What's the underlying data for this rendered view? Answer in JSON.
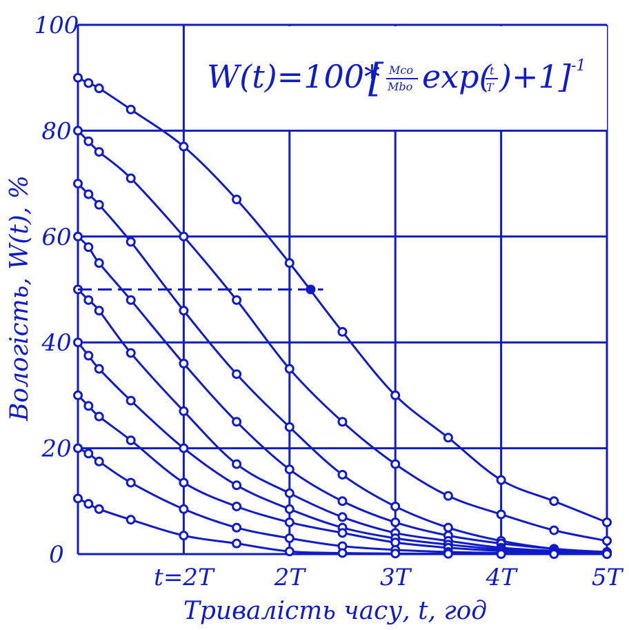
{
  "chart_data": {
    "type": "line",
    "xlabel": "Тривалість часу, t, год",
    "ylabel": "Вологість, W(t), %",
    "formula": {
      "lhs": "W(t)=100*",
      "open_bracket": "[",
      "ratio_num": "Mco",
      "ratio_den": "Mbo",
      "exp_prefix": "exp(",
      "exp_num": "t",
      "exp_den": "T",
      "exp_suffix": ")+1]",
      "power": "-1"
    },
    "x_tick_labels": [
      "t=2T",
      "2T",
      "3T",
      "4T",
      "5T"
    ],
    "x_tick_values": [
      1,
      2,
      3,
      4,
      5
    ],
    "y_tick_labels": [
      "100",
      "80",
      "60",
      "40",
      "20",
      "0"
    ],
    "y_tick_values": [
      100,
      80,
      60,
      40,
      20,
      0
    ],
    "xlim": [
      0,
      5
    ],
    "ylim": [
      0,
      100
    ],
    "grid": true,
    "x_gridlines": [
      0,
      1,
      2,
      3,
      4,
      5
    ],
    "y_gridlines": [
      0,
      20,
      40,
      60,
      80,
      100
    ],
    "reference_line": {
      "y": 50,
      "x_from": 0,
      "x_to": 2.2,
      "style": "dashed"
    },
    "marked_point": {
      "x": 2.2,
      "y": 50
    },
    "color": "#0f1bc8",
    "series": [
      {
        "x": [
          0,
          0.1,
          0.2,
          0.5,
          1,
          1.5,
          2,
          2.5,
          3,
          3.5,
          4,
          4.5,
          5
        ],
        "y": [
          90,
          89,
          88,
          84,
          77,
          67,
          55,
          42,
          30,
          22,
          14,
          10,
          6
        ]
      },
      {
        "x": [
          0,
          0.1,
          0.2,
          0.5,
          1,
          1.5,
          2,
          2.5,
          3,
          3.5,
          4,
          4.5,
          5
        ],
        "y": [
          80,
          78,
          76,
          71,
          60,
          48,
          35,
          25,
          17,
          11,
          7.5,
          4.5,
          2.5
        ]
      },
      {
        "x": [
          0,
          0.1,
          0.2,
          0.5,
          1,
          1.5,
          2,
          2.5,
          3,
          3.5,
          4,
          4.5,
          5
        ],
        "y": [
          70,
          68,
          66,
          59,
          46,
          34,
          24,
          15,
          9,
          5,
          2.5,
          1,
          0.4
        ]
      },
      {
        "x": [
          0,
          0.1,
          0.2,
          0.5,
          1,
          1.5,
          2,
          2.5,
          3,
          3.5,
          4,
          4.5,
          5
        ],
        "y": [
          60,
          58,
          55,
          48,
          36,
          25,
          16,
          10,
          6,
          3.5,
          2,
          1,
          0.3
        ]
      },
      {
        "x": [
          0,
          0.1,
          0.2,
          0.5,
          1,
          1.5,
          2,
          2.5,
          3,
          3.5,
          4,
          4.5,
          5
        ],
        "y": [
          50,
          48,
          46,
          38,
          27,
          17,
          11.5,
          7,
          4,
          2.5,
          1.2,
          0.6,
          0.2
        ]
      },
      {
        "x": [
          0,
          0.1,
          0.2,
          0.5,
          1,
          1.5,
          2,
          2.5,
          3,
          3.5,
          4,
          4.5,
          5
        ],
        "y": [
          40,
          37.5,
          35,
          29,
          20,
          13,
          8.5,
          5,
          3,
          1.8,
          0.9,
          0.4,
          0.1
        ]
      },
      {
        "x": [
          0,
          0.1,
          0.2,
          0.5,
          1,
          1.5,
          2,
          2.5,
          3,
          3.5,
          4,
          4.5,
          5
        ],
        "y": [
          30,
          28,
          26,
          21.5,
          13.5,
          9,
          6,
          4,
          2.2,
          1.2,
          0.6,
          0.3,
          0.1
        ]
      },
      {
        "x": [
          0,
          0.1,
          0.2,
          0.5,
          1,
          1.5,
          2,
          2.5,
          3,
          3.5,
          4,
          4.5,
          5
        ],
        "y": [
          20,
          19,
          17.5,
          13.5,
          8.5,
          5,
          3,
          1.5,
          0.8,
          0.4,
          0.2,
          0.1,
          0
        ]
      },
      {
        "x": [
          0,
          0.1,
          0.2,
          0.5,
          1,
          1.5,
          2,
          2.5,
          3,
          3.5,
          4,
          4.5,
          5
        ],
        "y": [
          10.5,
          9.5,
          8.5,
          6.5,
          3.5,
          2,
          0.5,
          0.2,
          0.1,
          0.05,
          0,
          0,
          0
        ]
      }
    ]
  }
}
